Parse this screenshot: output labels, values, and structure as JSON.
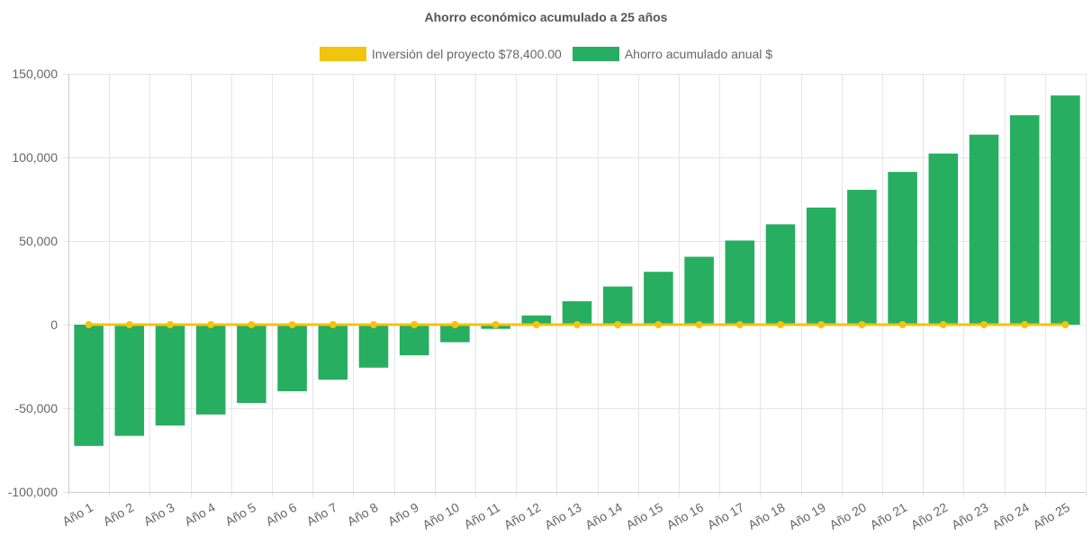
{
  "chart_data": {
    "type": "bar",
    "title": "Ahorro económico acumulado a 25 años",
    "xlabel": "",
    "ylabel": "",
    "categories": [
      "Año 1",
      "Año 2",
      "Año 3",
      "Año 4",
      "Año 5",
      "Año 6",
      "Año 7",
      "Año 8",
      "Año 9",
      "Año 10",
      "Año 11",
      "Año 12",
      "Año 13",
      "Año 14",
      "Año 15",
      "Año 16",
      "Año 17",
      "Año 18",
      "Año 19",
      "Año 20",
      "Año 21",
      "Año 22",
      "Año 23",
      "Año 24",
      "Año 25"
    ],
    "ylim": [
      -100000,
      150000
    ],
    "yticks": [
      150000,
      100000,
      50000,
      0,
      -50000,
      -100000
    ],
    "ytick_labels": [
      "150,000",
      "100,000",
      "50,000",
      "0",
      "-50,000",
      "-100,000"
    ],
    "grid": true,
    "legend_position": "top-center",
    "series": [
      {
        "name": "Inversión del proyecto $78,400.00",
        "type": "line",
        "color": "#f1c40f",
        "values": [
          0,
          0,
          0,
          0,
          0,
          0,
          0,
          0,
          0,
          0,
          0,
          0,
          0,
          0,
          0,
          0,
          0,
          0,
          0,
          0,
          0,
          0,
          0,
          0,
          0
        ]
      },
      {
        "name": "Ahorro acumulado anual $",
        "type": "bar",
        "color": "#27ae60",
        "values": [
          -72500,
          -66500,
          -60300,
          -53700,
          -46800,
          -39800,
          -32900,
          -25700,
          -18300,
          -10500,
          -2500,
          5500,
          14000,
          22800,
          31600,
          40600,
          50300,
          60000,
          70000,
          80600,
          91300,
          102300,
          113600,
          125200,
          137000
        ]
      }
    ]
  }
}
